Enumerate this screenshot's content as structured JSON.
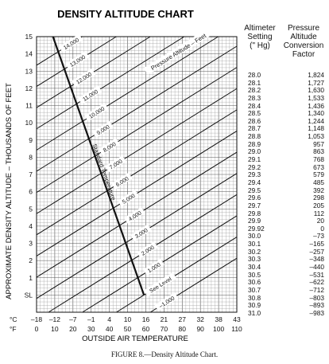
{
  "chart_data": {
    "type": "line",
    "title": "DENSITY ALTITUDE CHART",
    "ylabel": "APPROXIMATE DENSITY ALTITUDE – THOUSANDS OF FEET",
    "xlabel": "OUTSIDE AIR TEMPERATURE",
    "ylim": [
      -1,
      15
    ],
    "y_ticks": [
      "SL",
      "1",
      "2",
      "3",
      "4",
      "5",
      "6",
      "7",
      "8",
      "9",
      "10",
      "11",
      "12",
      "13",
      "14",
      "15"
    ],
    "y_tick_values": [
      0,
      1,
      2,
      3,
      4,
      5,
      6,
      7,
      8,
      9,
      10,
      11,
      12,
      13,
      14,
      15
    ],
    "x_celsius_ticks": [
      "–18",
      "–12",
      "–7",
      "–1",
      "4",
      "10",
      "16",
      "21",
      "27",
      "32",
      "38",
      "43"
    ],
    "x_celsius_label": "°C",
    "x_fahrenheit_ticks": [
      "0",
      "10",
      "20",
      "30",
      "40",
      "50",
      "60",
      "70",
      "80",
      "90",
      "100",
      "110"
    ],
    "x_fahrenheit_label": "°F",
    "xlim_f": [
      0,
      110
    ],
    "pressure_lines": [
      {
        "label": "14,000",
        "pa": 14
      },
      {
        "label": "13,000",
        "pa": 13
      },
      {
        "label": "12,000",
        "pa": 12
      },
      {
        "label": "11,000",
        "pa": 11
      },
      {
        "label": "10,000",
        "pa": 10
      },
      {
        "label": "9,000",
        "pa": 9
      },
      {
        "label": "8,000",
        "pa": 8
      },
      {
        "label": "7,000",
        "pa": 7
      },
      {
        "label": "6,000",
        "pa": 6
      },
      {
        "label": "5,000",
        "pa": 5
      },
      {
        "label": "4,000",
        "pa": 4
      },
      {
        "label": "3,000",
        "pa": 3
      },
      {
        "label": "2,000",
        "pa": 2
      },
      {
        "label": "1,000",
        "pa": 1
      },
      {
        "label": "See Level",
        "pa": 0
      },
      {
        "label": "–1,000",
        "pa": -1
      }
    ],
    "standard_temperature": {
      "label": "Standard Temperature",
      "from": {
        "temp_f": 59,
        "altitude": 0
      },
      "to": {
        "temp_f": 9,
        "altitude": 15
      }
    },
    "annotation_pressure": "Pressure Altitude – Feet"
  },
  "table": {
    "header_setting": [
      "Altimeter",
      "Setting",
      "(\" Hg)"
    ],
    "header_factor": [
      "Pressure",
      "Altitude",
      "Conversion",
      "Factor"
    ],
    "rows": [
      [
        "28.0",
        "1,824"
      ],
      [
        "28.1",
        "1,727"
      ],
      [
        "28.2",
        "1,630"
      ],
      [
        "28.3",
        "1,533"
      ],
      [
        "28.4",
        "1,436"
      ],
      [
        "28.5",
        "1,340"
      ],
      [
        "28.6",
        "1,244"
      ],
      [
        "28.7",
        "1,148"
      ],
      [
        "28.8",
        "1,053"
      ],
      [
        "28.9",
        "957"
      ],
      [
        "29.0",
        "863"
      ],
      [
        "29.1",
        "768"
      ],
      [
        "29.2",
        "673"
      ],
      [
        "29.3",
        "579"
      ],
      [
        "29.4",
        "485"
      ],
      [
        "29.5",
        "392"
      ],
      [
        "29.6",
        "298"
      ],
      [
        "29.7",
        "205"
      ],
      [
        "29.8",
        "112"
      ],
      [
        "29.9",
        "20"
      ],
      [
        "29.92",
        "0"
      ],
      [
        "30.0",
        "–73"
      ],
      [
        "30.1",
        "–165"
      ],
      [
        "30.2",
        "–257"
      ],
      [
        "30.3",
        "–348"
      ],
      [
        "30.4",
        "–440"
      ],
      [
        "30.5",
        "–531"
      ],
      [
        "30.6",
        "–622"
      ],
      [
        "30.7",
        "–712"
      ],
      [
        "30.8",
        "–803"
      ],
      [
        "30.9",
        "–893"
      ],
      [
        "31.0",
        "–983"
      ]
    ]
  },
  "caption": "FIGURE 8.—Density Altitude Chart.",
  "colors": {
    "ink": "#111111",
    "grid": "#9a9a9a",
    "paper": "#ffffff"
  }
}
